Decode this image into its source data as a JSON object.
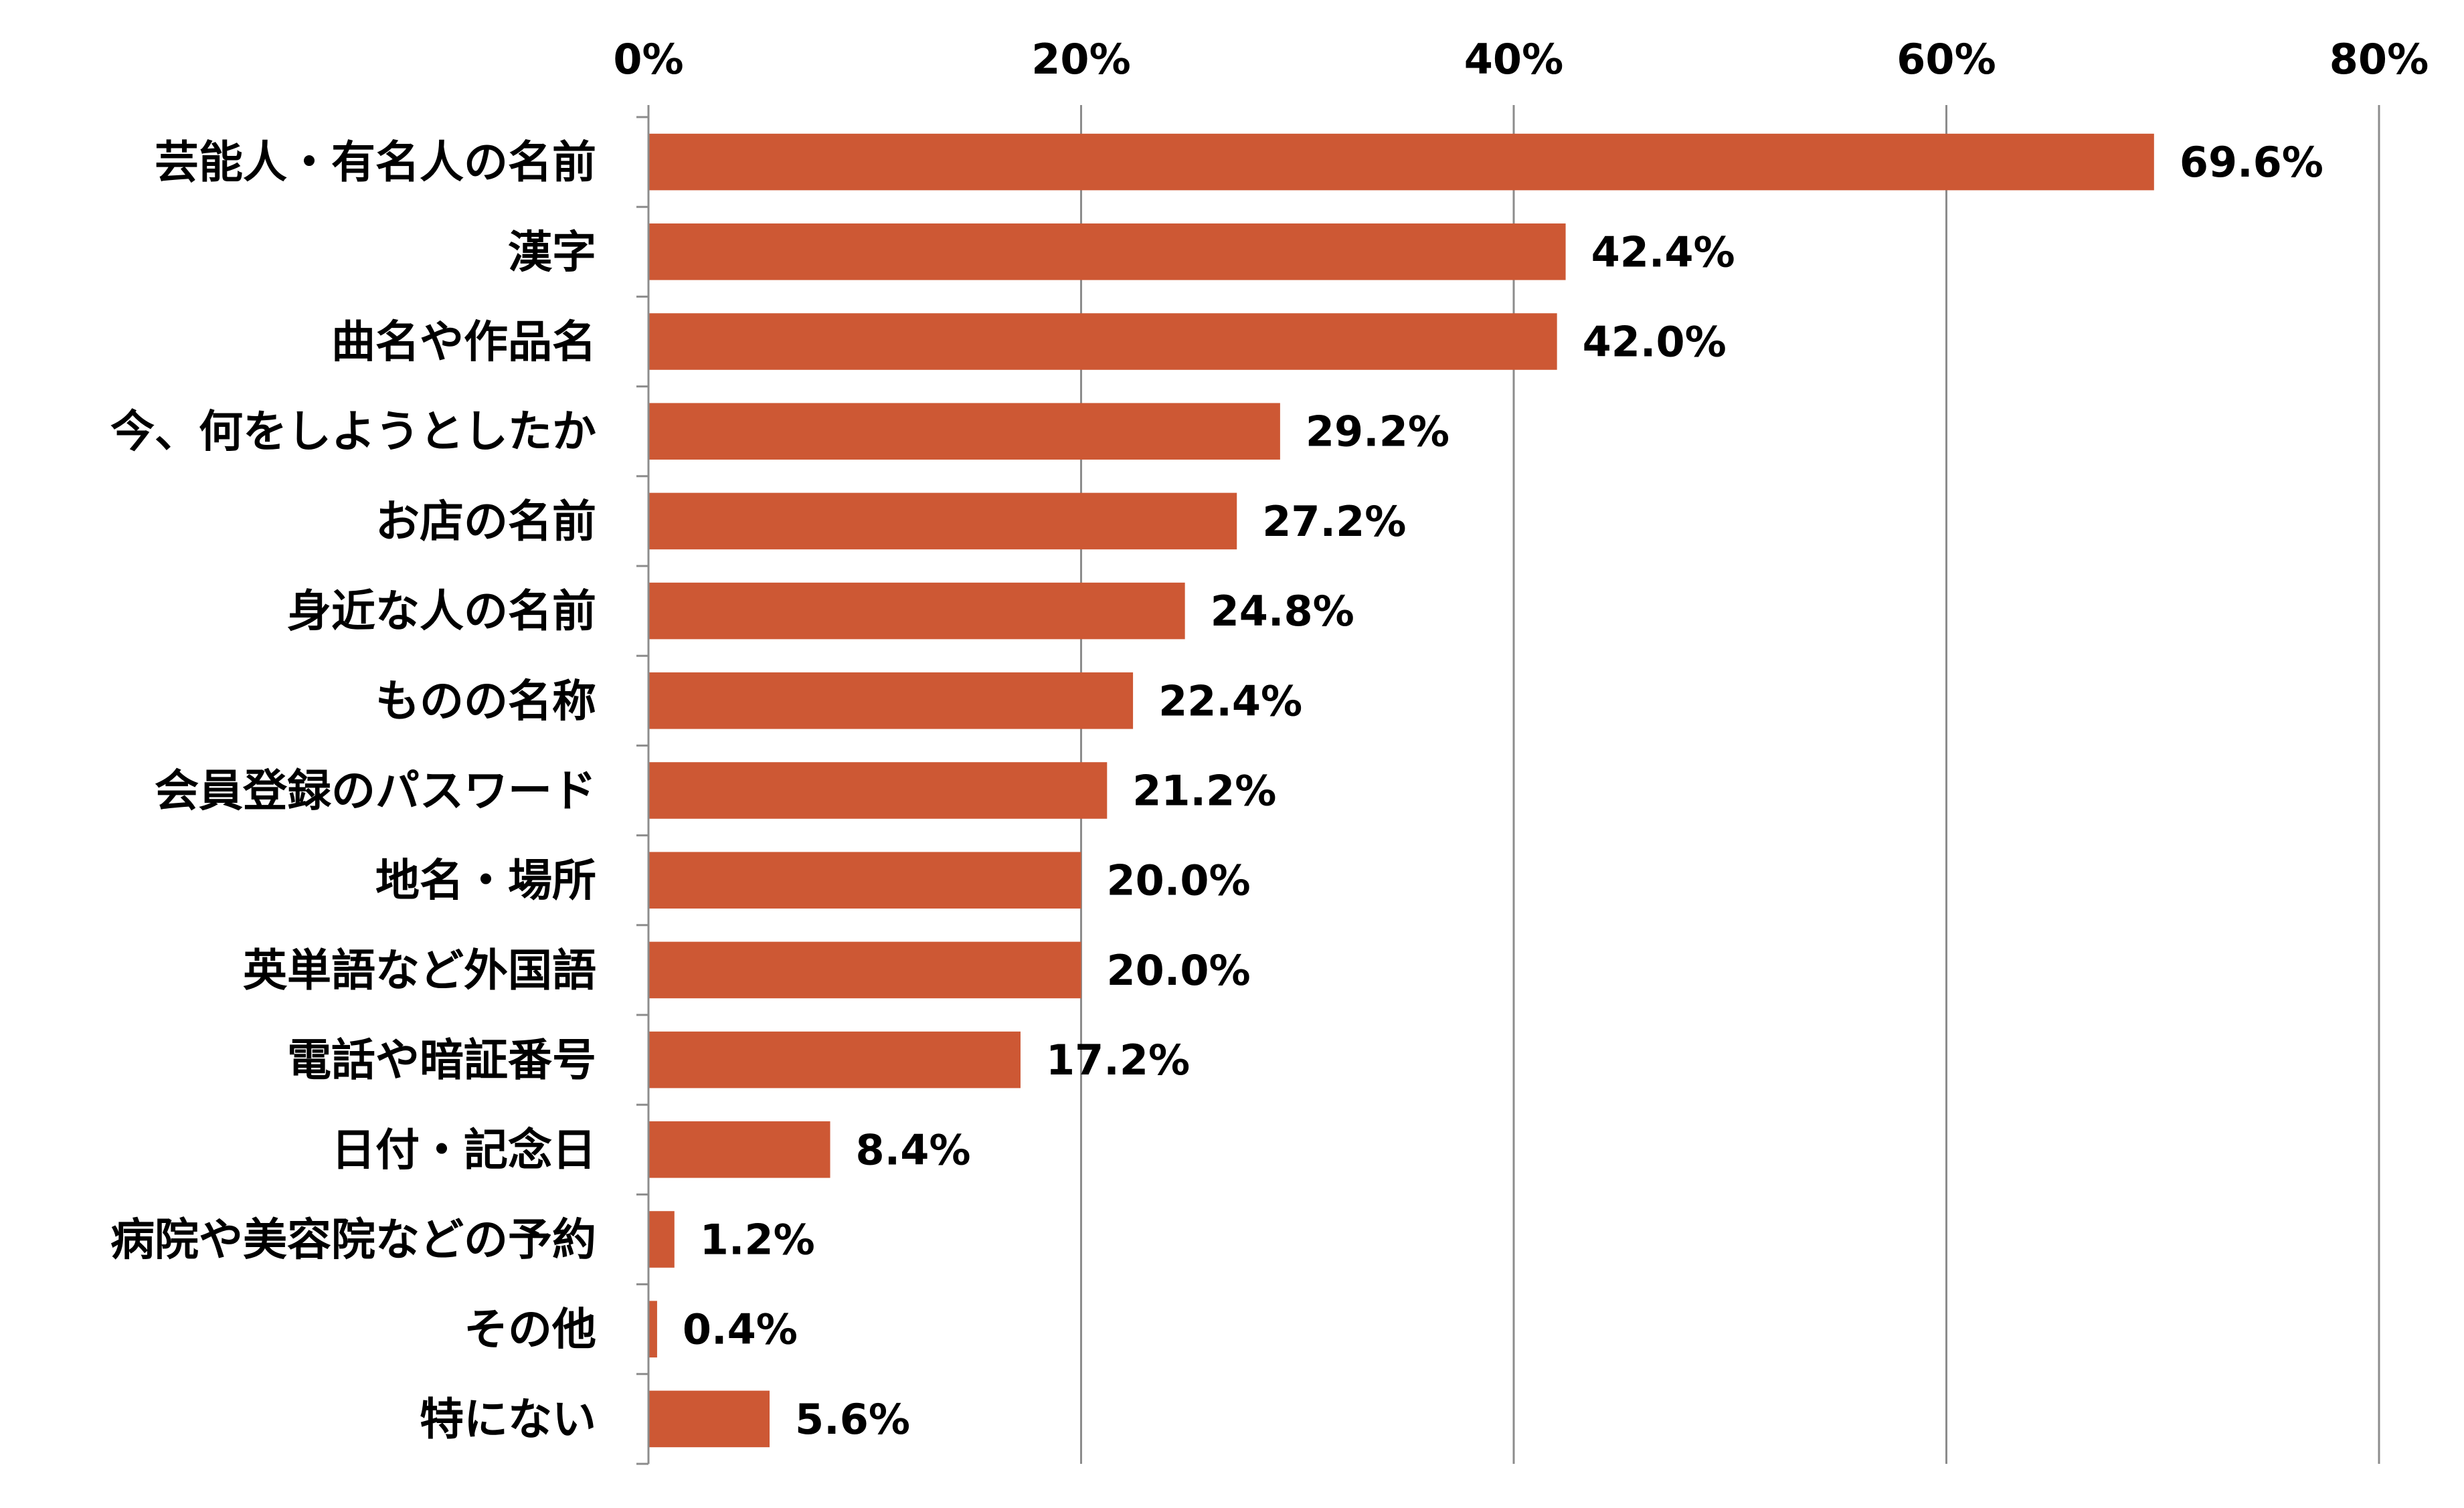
{
  "chart_data": {
    "type": "bar",
    "orientation": "horizontal",
    "title": "",
    "xlabel": "",
    "ylabel": "",
    "xlim": [
      0,
      80
    ],
    "x_ticks": [
      0,
      20,
      40,
      60,
      80
    ],
    "x_tick_labels": [
      "0%",
      "20%",
      "40%",
      "60%",
      "80%"
    ],
    "x_axis_position": "top",
    "grid": true,
    "legend": "none",
    "bar_color": "#cd5834",
    "categories": [
      "芸能人・有名人の名前",
      "漢字",
      "曲名や作品名",
      "今、何をしようとしたか",
      "お店の名前",
      "身近な人の名前",
      "ものの名称",
      "会員登録のパスワード",
      "地名・場所",
      "英単語など外国語",
      "電話や暗証番号",
      "日付・記念日",
      "病院や美容院などの予約",
      "その他",
      "特にない"
    ],
    "values": [
      69.6,
      42.4,
      42.0,
      29.2,
      27.2,
      24.8,
      22.4,
      21.2,
      20.0,
      20.0,
      17.2,
      8.4,
      1.2,
      0.4,
      5.6
    ],
    "value_labels": [
      "69.6%",
      "42.4%",
      "42.0%",
      "29.2%",
      "27.2%",
      "24.8%",
      "22.4%",
      "21.2%",
      "20.0%",
      "20.0%",
      "17.2%",
      "8.4%",
      "1.2%",
      "0.4%",
      "5.6%"
    ]
  }
}
